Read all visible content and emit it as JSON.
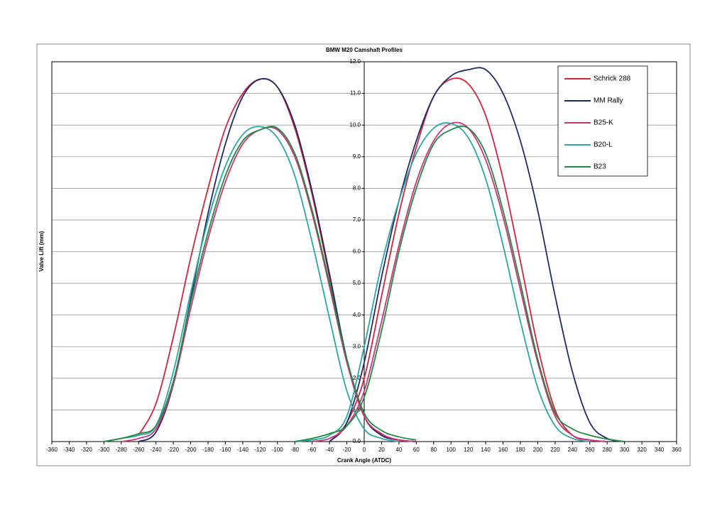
{
  "chart_data": {
    "type": "line",
    "title": "BMW M20 Camshaft Profiles",
    "x_label": "Crank Angle (ATDC)",
    "y_label": "Valve Lift (mm)",
    "x": [
      -300,
      -280,
      -260,
      -240,
      -220,
      -200,
      -180,
      -160,
      -140,
      -120,
      -100,
      -80,
      -60,
      -40,
      -20,
      0,
      20,
      40,
      60,
      null,
      -80,
      -60,
      -40,
      -20,
      0,
      20,
      40,
      60,
      80,
      100,
      120,
      140,
      160,
      180,
      200,
      220,
      240,
      260,
      280,
      300
    ],
    "series": [
      {
        "name": "Schrick 288",
        "color": "#d3243c",
        "values": [
          null,
          null,
          0.2,
          1.2,
          3.3,
          5.8,
          8.0,
          9.9,
          11.0,
          11.45,
          11.2,
          9.9,
          7.8,
          5.2,
          2.6,
          0.8,
          0.2,
          0.05,
          0,
          null,
          null,
          null,
          0,
          0.6,
          2.0,
          4.6,
          7.2,
          9.3,
          10.9,
          11.45,
          11.3,
          10.3,
          8.3,
          5.7,
          3.0,
          1.0,
          0.2,
          0.05,
          0,
          null
        ]
      },
      {
        "name": "MM Rally",
        "color": "#1f2a6b",
        "values": [
          null,
          null,
          0,
          0.3,
          1.8,
          4.5,
          7.2,
          9.4,
          10.9,
          11.45,
          11.2,
          10.0,
          7.9,
          5.3,
          2.6,
          0.8,
          0.2,
          0.05,
          0,
          null,
          null,
          null,
          0,
          0.6,
          2.5,
          5.2,
          7.6,
          9.5,
          10.9,
          11.55,
          11.75,
          11.75,
          11.0,
          9.5,
          7.3,
          4.6,
          2.2,
          0.6,
          0.1,
          0
        ]
      },
      {
        "name": "B25-K",
        "color": "#d03080",
        "values": [
          null,
          0,
          0.1,
          0.4,
          1.8,
          4.2,
          6.4,
          8.2,
          9.4,
          9.85,
          9.85,
          9.0,
          7.2,
          4.9,
          2.5,
          0.8,
          0.25,
          0.05,
          0,
          null,
          null,
          0,
          0.1,
          0.5,
          1.6,
          3.8,
          6.2,
          8.2,
          9.5,
          10.05,
          9.9,
          8.9,
          7.1,
          4.8,
          2.5,
          0.8,
          0.2,
          0.05,
          0,
          null
        ]
      },
      {
        "name": "B20-L",
        "color": "#2aa6a6",
        "values": [
          0,
          0.1,
          0.2,
          0.5,
          2.2,
          4.7,
          7.0,
          8.7,
          9.7,
          9.95,
          9.6,
          8.4,
          6.3,
          3.9,
          1.6,
          0.4,
          0.1,
          0,
          null,
          null,
          0,
          0.05,
          0.2,
          0.8,
          3.0,
          5.6,
          7.6,
          9.1,
          9.9,
          10.05,
          9.6,
          8.3,
          6.2,
          3.8,
          1.7,
          0.5,
          0.1,
          0,
          null,
          null
        ]
      },
      {
        "name": "B23",
        "color": "#1f8a3c",
        "values": [
          0,
          0.1,
          0.25,
          0.5,
          1.9,
          4.4,
          6.6,
          8.4,
          9.5,
          9.85,
          9.9,
          9.1,
          7.3,
          5.0,
          2.6,
          0.9,
          0.35,
          0.15,
          0.05,
          null,
          0,
          0.1,
          0.25,
          0.5,
          1.4,
          3.5,
          6.0,
          8.0,
          9.4,
          9.85,
          9.9,
          9.1,
          7.3,
          5.0,
          2.6,
          0.9,
          0.4,
          0.2,
          0.08,
          0
        ]
      }
    ],
    "xlim": [
      -360,
      360
    ],
    "xticks": [
      -360,
      -340,
      -320,
      -300,
      -280,
      -260,
      -240,
      -220,
      -200,
      -180,
      -160,
      -140,
      -120,
      -100,
      -80,
      -60,
      -40,
      -20,
      0,
      20,
      40,
      60,
      80,
      100,
      120,
      140,
      160,
      180,
      200,
      220,
      240,
      260,
      280,
      300,
      320,
      340,
      360
    ],
    "ylim": [
      0,
      12
    ],
    "yticks": [
      {
        "value": 0,
        "label": "0.0"
      },
      {
        "value": 1,
        "label": "1.0"
      },
      {
        "value": 2,
        "label": "2.0"
      },
      {
        "value": 3,
        "label": "3.0"
      },
      {
        "value": 4,
        "label": "4.0"
      },
      {
        "value": 5,
        "label": "5.0"
      },
      {
        "value": 6,
        "label": "6.0"
      },
      {
        "value": 7,
        "label": "7.0"
      },
      {
        "value": 8,
        "label": "8.0"
      },
      {
        "value": 9,
        "label": "9.0"
      },
      {
        "value": 10,
        "label": "10.0"
      },
      {
        "value": 11,
        "label": "11.0"
      },
      {
        "value": 12,
        "label": "12.0"
      }
    ],
    "grid": true,
    "legend": "top-right"
  }
}
